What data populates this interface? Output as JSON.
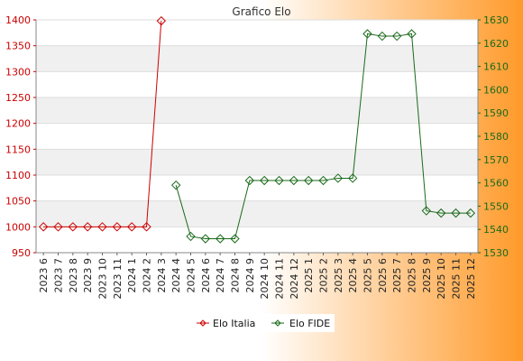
{
  "chart_data": {
    "type": "line",
    "title": "Grafico Elo",
    "categories": [
      "2023 6",
      "2023 7",
      "2023 8",
      "2023 9",
      "2023 10",
      "2023 11",
      "2024 1",
      "2024 2",
      "2024 3",
      "2024 4",
      "2024 5",
      "2024 6",
      "2024 7",
      "2024 8",
      "2024 9",
      "2024 10",
      "2024 11",
      "2024 12",
      "2025 1",
      "2025 2",
      "2025 3",
      "2025 4",
      "2025 5",
      "2025 6",
      "2025 7",
      "2025 8",
      "2025 9",
      "2025 10",
      "2025 11",
      "2025 12"
    ],
    "y_left": {
      "range": [
        950,
        1400
      ],
      "ticks": [
        950,
        1000,
        1050,
        1100,
        1150,
        1200,
        1250,
        1300,
        1350,
        1400
      ],
      "color": "#cc0000"
    },
    "y_right": {
      "range": [
        1530,
        1630
      ],
      "ticks": [
        1530,
        1540,
        1550,
        1560,
        1570,
        1580,
        1590,
        1600,
        1610,
        1620,
        1630
      ],
      "color": "#1a6a1a"
    },
    "series": [
      {
        "name": "Elo Italia",
        "axis": "left",
        "color": "#cc0000",
        "values": [
          1000,
          1000,
          1000,
          1000,
          1000,
          1000,
          1000,
          1000,
          1398,
          null,
          null,
          null,
          null,
          null,
          null,
          null,
          null,
          null,
          null,
          null,
          null,
          null,
          null,
          null,
          null,
          null,
          null,
          null,
          null,
          null
        ]
      },
      {
        "name": "Elo FIDE",
        "axis": "right",
        "color": "#1a6a1a",
        "values": [
          null,
          null,
          null,
          null,
          null,
          null,
          null,
          null,
          null,
          1559,
          1537,
          1536,
          1536,
          1536,
          1561,
          1561,
          1561,
          1561,
          1561,
          1561,
          1562,
          1562,
          1624,
          1623,
          1623,
          1624,
          1548,
          1547,
          1547,
          1547
        ]
      }
    ],
    "grid": true,
    "legend": "bottom"
  }
}
